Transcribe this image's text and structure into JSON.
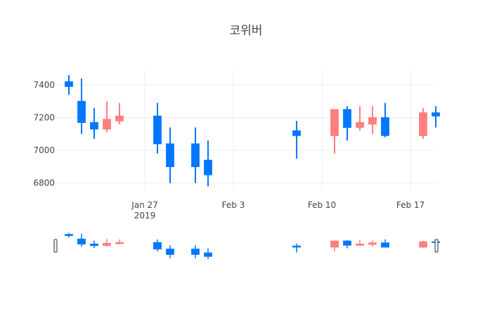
{
  "chart_data": {
    "type": "candlestick",
    "title": "코위버",
    "xlabel": "",
    "ylabel": "",
    "ylim": [
      6760,
      7490
    ],
    "yticks": [
      6800,
      7000,
      7200,
      7400
    ],
    "xrange": [
      "2019-01-20",
      "2019-02-19"
    ],
    "xticks": [
      {
        "date": "2019-01-27",
        "label": "Jan 27",
        "sublabel": "2019"
      },
      {
        "date": "2019-02-03",
        "label": "Feb 3",
        "sublabel": ""
      },
      {
        "date": "2019-02-10",
        "label": "Feb 10",
        "sublabel": ""
      },
      {
        "date": "2019-02-17",
        "label": "Feb 17",
        "sublabel": ""
      }
    ],
    "grid": true,
    "rangeslider": true,
    "colors": {
      "increasing": "#ff7f7f",
      "decreasing": "#0077ff"
    },
    "candles": [
      {
        "date": "2019-01-21",
        "open": 7420,
        "high": 7460,
        "low": 7340,
        "close": 7390
      },
      {
        "date": "2019-01-22",
        "open": 7300,
        "high": 7440,
        "low": 7100,
        "close": 7170
      },
      {
        "date": "2019-01-23",
        "open": 7170,
        "high": 7260,
        "low": 7070,
        "close": 7130
      },
      {
        "date": "2019-01-24",
        "open": 7130,
        "high": 7300,
        "low": 7110,
        "close": 7190
      },
      {
        "date": "2019-01-25",
        "open": 7180,
        "high": 7290,
        "low": 7160,
        "close": 7210
      },
      {
        "date": "2019-01-28",
        "open": 7210,
        "high": 7290,
        "low": 6980,
        "close": 7040
      },
      {
        "date": "2019-01-29",
        "open": 7040,
        "high": 7140,
        "low": 6800,
        "close": 6900
      },
      {
        "date": "2019-01-31",
        "open": 7040,
        "high": 7140,
        "low": 6800,
        "close": 6900
      },
      {
        "date": "2019-02-01",
        "open": 6940,
        "high": 7060,
        "low": 6780,
        "close": 6850
      },
      {
        "date": "2019-02-08",
        "open": 7120,
        "high": 7180,
        "low": 6950,
        "close": 7090
      },
      {
        "date": "2019-02-11",
        "open": 7090,
        "high": 7250,
        "low": 6980,
        "close": 7250
      },
      {
        "date": "2019-02-12",
        "open": 7250,
        "high": 7270,
        "low": 7060,
        "close": 7140
      },
      {
        "date": "2019-02-13",
        "open": 7140,
        "high": 7270,
        "low": 7120,
        "close": 7170
      },
      {
        "date": "2019-02-14",
        "open": 7160,
        "high": 7270,
        "low": 7100,
        "close": 7200
      },
      {
        "date": "2019-02-15",
        "open": 7200,
        "high": 7290,
        "low": 7080,
        "close": 7090
      },
      {
        "date": "2019-02-18",
        "open": 7090,
        "high": 7260,
        "low": 7070,
        "close": 7230
      },
      {
        "date": "2019-02-19",
        "open": 7230,
        "high": 7270,
        "low": 7140,
        "close": 7210
      }
    ]
  }
}
